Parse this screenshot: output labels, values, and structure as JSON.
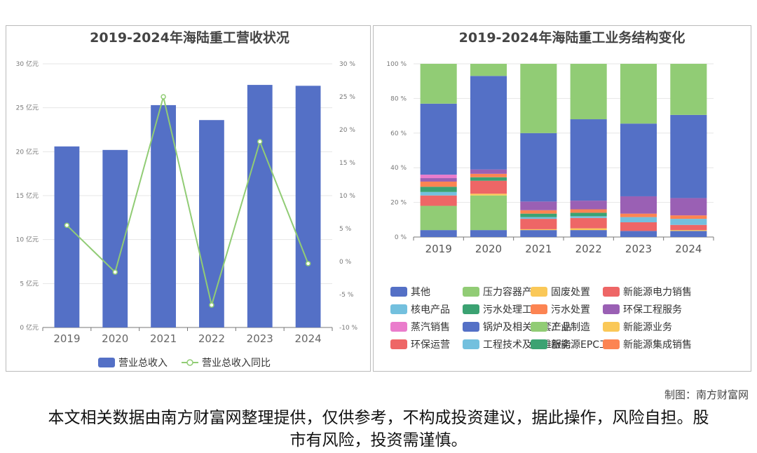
{
  "chart_data": [
    {
      "type": "bar",
      "title": "2019-2024年海陆重工营收状况",
      "categories": [
        "2019",
        "2020",
        "2021",
        "2022",
        "2023",
        "2024"
      ],
      "series": [
        {
          "name": "营业总收入",
          "type": "bar",
          "axis": "left",
          "values": [
            20.6,
            20.2,
            25.3,
            23.6,
            27.6,
            27.5
          ]
        },
        {
          "name": "营业总收入同比",
          "type": "line",
          "axis": "right",
          "values": [
            5.5,
            -1.6,
            25.0,
            -6.6,
            18.2,
            -0.3
          ]
        }
      ],
      "y_left": {
        "min": 0,
        "max": 30,
        "step": 5,
        "tick_labels": [
          "0 亿元",
          "5 亿元",
          "10 亿元",
          "15 亿元",
          "20 亿元",
          "25 亿元",
          "30 亿元"
        ]
      },
      "y_right": {
        "min": -10,
        "max": 30,
        "step": 5,
        "tick_labels": [
          "-10 %",
          "-5 %",
          "0 %",
          "5 %",
          "10 %",
          "15 %",
          "20 %",
          "25 %",
          "30 %"
        ]
      },
      "legend_position": "bottom",
      "colors": {
        "bar": "#5470c6",
        "line": "#91cc75"
      }
    },
    {
      "type": "bar",
      "stacked": true,
      "percent": true,
      "title": "2019-2024年海陆重工业务结构变化",
      "categories": [
        "2019",
        "2020",
        "2021",
        "2022",
        "2023",
        "2024"
      ],
      "y_tick_labels": [
        "0 %",
        "20 %",
        "40 %",
        "60 %",
        "80 %",
        "100 %"
      ],
      "ylim": [
        0,
        100
      ],
      "legend_position": "bottom",
      "series": [
        {
          "name": "其他",
          "color": "#5470c6",
          "values": [
            4,
            4,
            4,
            4,
            3.5,
            3.5
          ]
        },
        {
          "name": "压力容器产品",
          "color": "#91cc75",
          "values": [
            14,
            20,
            0,
            0,
            0,
            0
          ]
        },
        {
          "name": "固废处置",
          "color": "#fac858",
          "values": [
            0,
            1,
            0.5,
            1,
            0,
            0.5
          ]
        },
        {
          "name": "新能源电力销售",
          "color": "#ee6666",
          "values": [
            6,
            7.5,
            6,
            6,
            5,
            3
          ]
        },
        {
          "name": "核电产品",
          "color": "#73c0de",
          "values": [
            2,
            0,
            1,
            1,
            3,
            3.5
          ]
        },
        {
          "name": "污水处理工程",
          "color": "#3ba272",
          "values": [
            3,
            2,
            2,
            2,
            0,
            0
          ]
        },
        {
          "name": "污水处置",
          "color": "#fc8452",
          "values": [
            3,
            2,
            2,
            2,
            2,
            2
          ]
        },
        {
          "name": "环保工程服务",
          "color": "#9a60b4",
          "values": [
            2,
            2.5,
            5,
            5,
            10,
            10
          ]
        },
        {
          "name": "蒸汽销售",
          "color": "#ea7ccc",
          "values": [
            2,
            0,
            0,
            0,
            0,
            0
          ]
        },
        {
          "name": "锅炉及相关配套产品",
          "color": "#5470c6",
          "values": [
            41,
            54,
            39.5,
            47,
            42,
            48
          ]
        },
        {
          "name": "工业制造",
          "color": "#91cc75",
          "values": [
            23,
            7,
            40,
            32,
            34.5,
            29.5
          ]
        },
        {
          "name": "新能源业务",
          "color": "#fac858",
          "values": [
            0,
            0,
            0,
            0,
            0,
            0
          ]
        },
        {
          "name": "环保运营",
          "color": "#ee6666",
          "values": [
            0,
            0,
            0,
            0,
            0,
            0
          ]
        },
        {
          "name": "工程技术及运维服务",
          "color": "#73c0de",
          "values": [
            0,
            0,
            0,
            0,
            0,
            0
          ]
        },
        {
          "name": "新能源EPC工程",
          "color": "#3ba272",
          "values": [
            0,
            0,
            0,
            0,
            0,
            0
          ]
        },
        {
          "name": "新能源集成销售",
          "color": "#fc8452",
          "values": [
            0,
            0,
            0,
            0,
            0,
            0
          ]
        }
      ]
    }
  ],
  "footer": {
    "credit": "制图：南方财富网",
    "disclaimer": "本文相关数据由南方财富网整理提供，仅供参考，不构成投资建议，据此操作，风险自担。股市有风险，投资需谨慎。"
  }
}
